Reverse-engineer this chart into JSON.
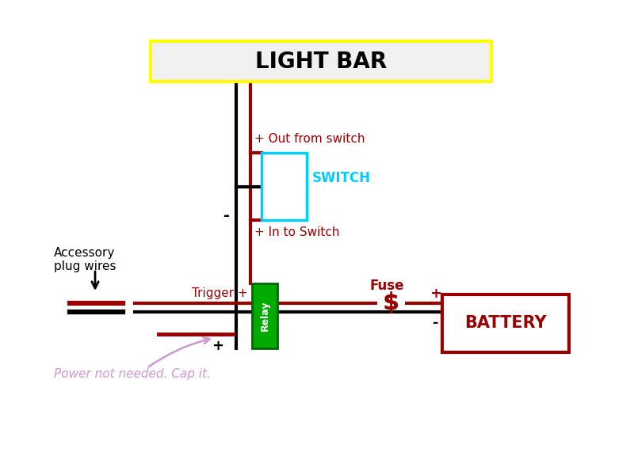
{
  "title": "LIGHT BAR",
  "title_box_color": "#ffff00",
  "title_text_color": "#000000",
  "switch_label": "SWITCH",
  "switch_color": "#00ccff",
  "relay_label": "Relay",
  "relay_fill": "#00aa00",
  "relay_edge": "#006600",
  "battery_label": "BATTERY",
  "battery_color": "#990000",
  "fuse_label": "Fuse",
  "accessory_label": "Accessory\nplug wires",
  "trigger_label": "Trigger +",
  "out_switch_label": "+ Out from switch",
  "in_switch_label": "+ In to Switch",
  "cap_label": "Power not needed. Cap it.",
  "plus_label": "+",
  "minus_label": "-",
  "wire_black": "#000000",
  "wire_red": "#990000",
  "wire_purple": "#cc99cc",
  "lw": 3.0
}
